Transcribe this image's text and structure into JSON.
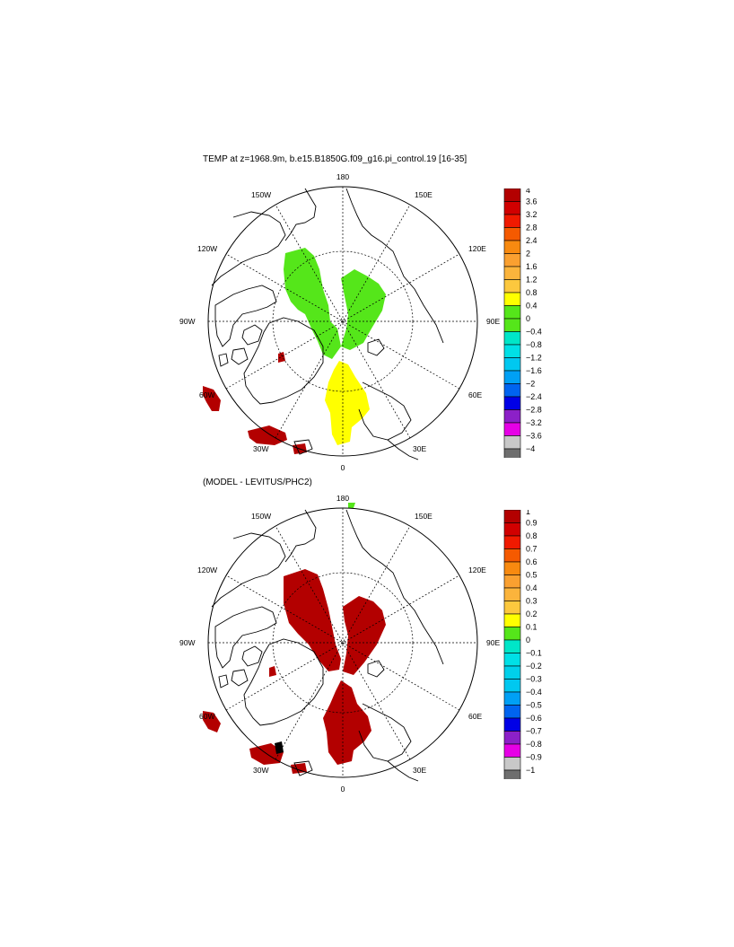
{
  "titles": {
    "top": "TEMP at z=1968.9m, b.e15.B1850G.f09_g16.pi_control.19 [16-35]",
    "bottom": "(MODEL - LEVITUS/PHC2)"
  },
  "map_labels": {
    "n180": "180",
    "n0": "0",
    "w150": "150W",
    "e150": "150E",
    "w120": "120W",
    "e120": "120E",
    "w90": "90W",
    "e90": "90E",
    "w60": "60W",
    "e60": "60E",
    "w30": "30W",
    "e30": "30E"
  },
  "colorbars": {
    "top": {
      "labels": [
        "4",
        "3.6",
        "3.2",
        "2.8",
        "2.4",
        "2",
        "1.6",
        "1.2",
        "0.8",
        "0.4",
        "0",
        "−0.4",
        "−0.8",
        "−1.2",
        "−1.6",
        "−2",
        "−2.4",
        "−2.8",
        "−3.2",
        "−3.6",
        "−4"
      ],
      "colors": [
        "#b30000",
        "#d10000",
        "#f01a00",
        "#f55a00",
        "#f88a10",
        "#faa030",
        "#fbb43c",
        "#fcc83e",
        "#ffff00",
        "#55e61a",
        "#55e61a",
        "#00e6c8",
        "#00e0e6",
        "#00c8f0",
        "#00a0f5",
        "#0064f0",
        "#0000e6",
        "#8c20c8",
        "#e600e6",
        "#c8c8c8",
        "#6e6e6e"
      ]
    },
    "bottom": {
      "labels": [
        "1",
        "0.9",
        "0.8",
        "0.7",
        "0.6",
        "0.5",
        "0.4",
        "0.3",
        "0.2",
        "0.1",
        "0",
        "−0.1",
        "−0.2",
        "−0.3",
        "−0.4",
        "−0.5",
        "−0.6",
        "−0.7",
        "−0.8",
        "−0.9",
        "−1"
      ],
      "colors": [
        "#b30000",
        "#d10000",
        "#f01a00",
        "#f55a00",
        "#f88a10",
        "#faa030",
        "#fbb43c",
        "#fcc83e",
        "#ffff00",
        "#55e61a",
        "#00e6c8",
        "#00e0e6",
        "#00d0ea",
        "#00c8f0",
        "#00a0f5",
        "#0064f0",
        "#0000e6",
        "#8c20c8",
        "#e600e6",
        "#c8c8c8",
        "#6e6e6e"
      ]
    }
  },
  "field_colors": {
    "green": "#55e61a",
    "yellow": "#ffff00",
    "darkred": "#b30000"
  }
}
